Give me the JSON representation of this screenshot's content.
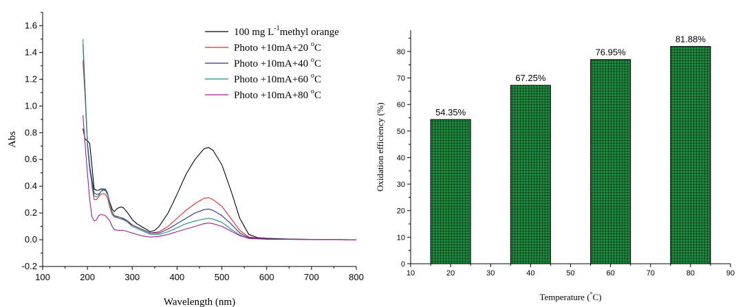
{
  "chart_data": [
    {
      "type": "line",
      "xlabel": "Wavelength (nm)",
      "ylabel": "Abs",
      "xlim": [
        100,
        800
      ],
      "ylim": [
        -0.2,
        1.7
      ],
      "xticks": [
        "100",
        "200",
        "300",
        "400",
        "500",
        "600",
        "700",
        "800"
      ],
      "yticks": [
        "-0.2",
        "0.0",
        "0.2",
        "0.4",
        "0.6",
        "0.8",
        "1.0",
        "1.2",
        "1.4",
        "1.6"
      ],
      "legend_position": "top-right",
      "series": [
        {
          "name_parts": [
            "100 mg L",
            "-1",
            "methyl orange"
          ],
          "color": "#000000",
          "points": [
            [
              190,
              0.83
            ],
            [
              195,
              0.75
            ],
            [
              200,
              0.74
            ],
            [
              205,
              0.72
            ],
            [
              210,
              0.55
            ],
            [
              215,
              0.38
            ],
            [
              220,
              0.37
            ],
            [
              225,
              0.37
            ],
            [
              230,
              0.38
            ],
            [
              235,
              0.38
            ],
            [
              240,
              0.37
            ],
            [
              245,
              0.34
            ],
            [
              250,
              0.28
            ],
            [
              255,
              0.23
            ],
            [
              260,
              0.21
            ],
            [
              265,
              0.23
            ],
            [
              270,
              0.24
            ],
            [
              275,
              0.245
            ],
            [
              280,
              0.24
            ],
            [
              290,
              0.2
            ],
            [
              300,
              0.15
            ],
            [
              310,
              0.12
            ],
            [
              320,
              0.1
            ],
            [
              330,
              0.08
            ],
            [
              340,
              0.06
            ],
            [
              350,
              0.07
            ],
            [
              360,
              0.1
            ],
            [
              380,
              0.2
            ],
            [
              400,
              0.34
            ],
            [
              420,
              0.49
            ],
            [
              440,
              0.6
            ],
            [
              460,
              0.68
            ],
            [
              470,
              0.69
            ],
            [
              480,
              0.67
            ],
            [
              500,
              0.56
            ],
            [
              520,
              0.37
            ],
            [
              540,
              0.16
            ],
            [
              560,
              0.04
            ],
            [
              580,
              0.015
            ],
            [
              600,
              0.01
            ],
            [
              650,
              0.005
            ],
            [
              700,
              0.003
            ],
            [
              800,
              0.0
            ]
          ]
        },
        {
          "name_parts": [
            "Photo +10mA+20 ",
            "o",
            "C"
          ],
          "color": "#e8262a",
          "points": [
            [
              190,
              1.34
            ],
            [
              195,
              1.05
            ],
            [
              200,
              0.72
            ],
            [
              205,
              0.56
            ],
            [
              210,
              0.4
            ],
            [
              215,
              0.3
            ],
            [
              220,
              0.3
            ],
            [
              225,
              0.32
            ],
            [
              230,
              0.34
            ],
            [
              235,
              0.345
            ],
            [
              240,
              0.34
            ],
            [
              245,
              0.31
            ],
            [
              250,
              0.24
            ],
            [
              255,
              0.19
            ],
            [
              260,
              0.17
            ],
            [
              265,
              0.17
            ],
            [
              270,
              0.16
            ],
            [
              280,
              0.155
            ],
            [
              290,
              0.13
            ],
            [
              300,
              0.11
            ],
            [
              320,
              0.08
            ],
            [
              340,
              0.05
            ],
            [
              360,
              0.06
            ],
            [
              380,
              0.1
            ],
            [
              400,
              0.16
            ],
            [
              420,
              0.22
            ],
            [
              440,
              0.27
            ],
            [
              460,
              0.31
            ],
            [
              470,
              0.315
            ],
            [
              480,
              0.3
            ],
            [
              500,
              0.25
            ],
            [
              520,
              0.16
            ],
            [
              540,
              0.07
            ],
            [
              560,
              0.02
            ],
            [
              600,
              0.005
            ],
            [
              700,
              0.002
            ],
            [
              800,
              0.0
            ]
          ]
        },
        {
          "name_parts": [
            "Photo +10mA+40 ",
            "o",
            "C"
          ],
          "color": "#2d2f94",
          "points": [
            [
              190,
              1.46
            ],
            [
              195,
              1.1
            ],
            [
              200,
              0.73
            ],
            [
              205,
              0.55
            ],
            [
              210,
              0.45
            ],
            [
              215,
              0.35
            ],
            [
              220,
              0.34
            ],
            [
              225,
              0.34
            ],
            [
              230,
              0.36
            ],
            [
              235,
              0.37
            ],
            [
              240,
              0.37
            ],
            [
              245,
              0.34
            ],
            [
              250,
              0.27
            ],
            [
              255,
              0.21
            ],
            [
              260,
              0.18
            ],
            [
              270,
              0.17
            ],
            [
              280,
              0.16
            ],
            [
              290,
              0.14
            ],
            [
              300,
              0.11
            ],
            [
              320,
              0.08
            ],
            [
              340,
              0.05
            ],
            [
              360,
              0.05
            ],
            [
              380,
              0.08
            ],
            [
              400,
              0.12
            ],
            [
              420,
              0.16
            ],
            [
              440,
              0.2
            ],
            [
              460,
              0.225
            ],
            [
              470,
              0.23
            ],
            [
              480,
              0.22
            ],
            [
              500,
              0.18
            ],
            [
              520,
              0.12
            ],
            [
              540,
              0.05
            ],
            [
              560,
              0.015
            ],
            [
              600,
              0.005
            ],
            [
              700,
              0.002
            ],
            [
              800,
              0.0
            ]
          ]
        },
        {
          "name_parts": [
            "Photo +10mA+60 ",
            "o",
            "C"
          ],
          "color": "#1f8a84",
          "points": [
            [
              190,
              1.5
            ],
            [
              195,
              1.1
            ],
            [
              200,
              0.7
            ],
            [
              205,
              0.52
            ],
            [
              210,
              0.42
            ],
            [
              215,
              0.33
            ],
            [
              220,
              0.32
            ],
            [
              225,
              0.33
            ],
            [
              230,
              0.36
            ],
            [
              235,
              0.38
            ],
            [
              240,
              0.38
            ],
            [
              245,
              0.35
            ],
            [
              250,
              0.27
            ],
            [
              255,
              0.21
            ],
            [
              260,
              0.17
            ],
            [
              270,
              0.16
            ],
            [
              280,
              0.15
            ],
            [
              290,
              0.13
            ],
            [
              300,
              0.1
            ],
            [
              320,
              0.07
            ],
            [
              340,
              0.04
            ],
            [
              360,
              0.04
            ],
            [
              380,
              0.06
            ],
            [
              400,
              0.09
            ],
            [
              420,
              0.12
            ],
            [
              440,
              0.14
            ],
            [
              460,
              0.155
            ],
            [
              470,
              0.16
            ],
            [
              480,
              0.155
            ],
            [
              500,
              0.13
            ],
            [
              520,
              0.08
            ],
            [
              540,
              0.035
            ],
            [
              560,
              0.01
            ],
            [
              600,
              0.004
            ],
            [
              700,
              0.002
            ],
            [
              800,
              0.0
            ]
          ]
        },
        {
          "name_parts": [
            "Photo +10mA+80 ",
            "o",
            "C"
          ],
          "color": "#a51a9e",
          "points": [
            [
              190,
              0.93
            ],
            [
              195,
              0.7
            ],
            [
              200,
              0.5
            ],
            [
              205,
              0.3
            ],
            [
              210,
              0.17
            ],
            [
              215,
              0.14
            ],
            [
              220,
              0.15
            ],
            [
              225,
              0.18
            ],
            [
              230,
              0.19
            ],
            [
              235,
              0.185
            ],
            [
              240,
              0.18
            ],
            [
              245,
              0.16
            ],
            [
              250,
              0.14
            ],
            [
              255,
              0.1
            ],
            [
              260,
              0.075
            ],
            [
              270,
              0.07
            ],
            [
              280,
              0.07
            ],
            [
              290,
              0.06
            ],
            [
              300,
              0.05
            ],
            [
              320,
              0.03
            ],
            [
              340,
              0.02
            ],
            [
              360,
              0.025
            ],
            [
              380,
              0.04
            ],
            [
              400,
              0.06
            ],
            [
              420,
              0.08
            ],
            [
              440,
              0.1
            ],
            [
              460,
              0.12
            ],
            [
              470,
              0.125
            ],
            [
              480,
              0.12
            ],
            [
              500,
              0.1
            ],
            [
              520,
              0.065
            ],
            [
              540,
              0.03
            ],
            [
              560,
              0.01
            ],
            [
              600,
              0.004
            ],
            [
              700,
              0.002
            ],
            [
              800,
              0.0
            ]
          ]
        }
      ]
    },
    {
      "type": "bar",
      "xlabel_prefix": "Temperature (",
      "xlabel_degree": "°",
      "xlabel_suffix": "C)",
      "ylabel": "Oxidation efficiency (%)",
      "xlim": [
        10,
        90
      ],
      "ylim": [
        0,
        88
      ],
      "xticks": [
        "10",
        "20",
        "30",
        "40",
        "50",
        "60",
        "70",
        "80",
        "90"
      ],
      "yticks": [
        "0",
        "10",
        "20",
        "30",
        "40",
        "50",
        "60",
        "70",
        "80"
      ],
      "bar_color": "#1e8a3e",
      "bar_width": 10,
      "x": [
        20,
        40,
        60,
        80
      ],
      "values": [
        54.35,
        67.25,
        76.95,
        81.88
      ],
      "labels": [
        "54.35%",
        "67.25%",
        "76.95%",
        "81.88%"
      ]
    }
  ]
}
